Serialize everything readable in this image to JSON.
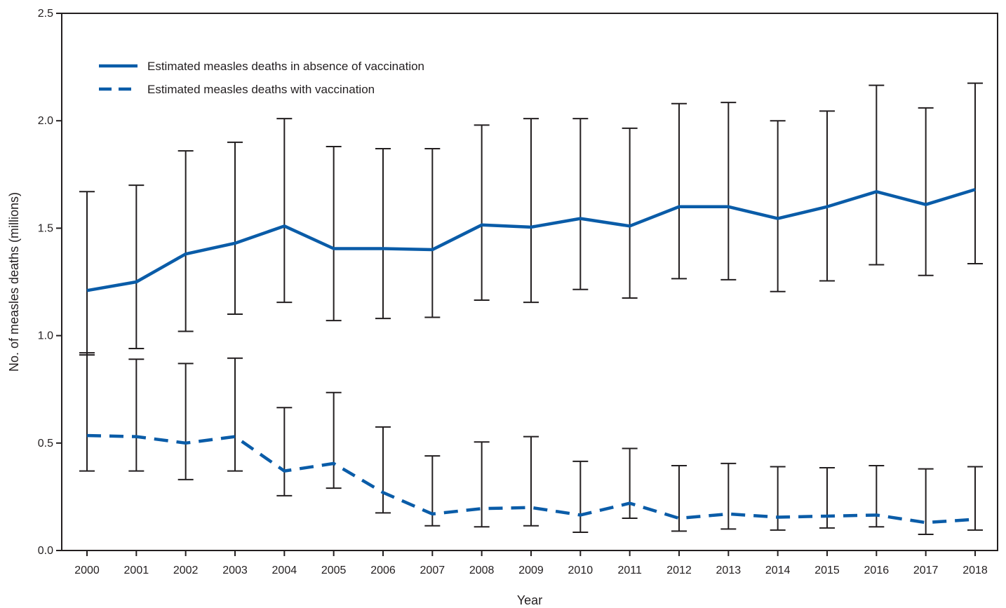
{
  "chart_data": {
    "type": "line",
    "title": "",
    "xlabel": "Year",
    "ylabel": "No. of measles deaths (millions)",
    "x": [
      "2000",
      "2001",
      "2002",
      "2003",
      "2004",
      "2005",
      "2006",
      "2007",
      "2008",
      "2009",
      "2010",
      "2011",
      "2012",
      "2013",
      "2014",
      "2015",
      "2016",
      "2017",
      "2018"
    ],
    "ylim": [
      0,
      2.5
    ],
    "yticks": [
      "0.0",
      "0.5",
      "1.0",
      "1.5",
      "2.0",
      "2.5"
    ],
    "grid": false,
    "legend_position": "top-left",
    "series": [
      {
        "name": "Estimated measles deaths in absence of vaccination",
        "style": "solid",
        "color": "#0a5ca8",
        "values": [
          1.21,
          1.25,
          1.38,
          1.43,
          1.51,
          1.405,
          1.405,
          1.4,
          1.515,
          1.505,
          1.545,
          1.51,
          1.6,
          1.6,
          1.545,
          1.6,
          1.67,
          1.61,
          1.68
        ],
        "lower": [
          0.91,
          0.94,
          1.02,
          1.1,
          1.155,
          1.07,
          1.08,
          1.085,
          1.165,
          1.155,
          1.215,
          1.175,
          1.265,
          1.26,
          1.205,
          1.255,
          1.33,
          1.28,
          1.335
        ],
        "upper": [
          1.67,
          1.7,
          1.86,
          1.9,
          2.01,
          1.88,
          1.87,
          1.87,
          1.98,
          2.01,
          2.01,
          1.965,
          2.08,
          2.085,
          2.0,
          2.045,
          2.165,
          2.06,
          2.175
        ]
      },
      {
        "name": "Estimated measles deaths with vaccination",
        "style": "dashed",
        "color": "#0a5ca8",
        "values": [
          0.535,
          0.53,
          0.5,
          0.53,
          0.37,
          0.405,
          0.27,
          0.17,
          0.195,
          0.2,
          0.165,
          0.22,
          0.15,
          0.17,
          0.155,
          0.16,
          0.165,
          0.13,
          0.145
        ],
        "lower": [
          0.37,
          0.37,
          0.33,
          0.37,
          0.255,
          0.29,
          0.175,
          0.115,
          0.11,
          0.115,
          0.085,
          0.15,
          0.09,
          0.1,
          0.095,
          0.105,
          0.11,
          0.075,
          0.095
        ],
        "upper": [
          0.92,
          0.89,
          0.87,
          0.895,
          0.665,
          0.735,
          0.575,
          0.44,
          0.505,
          0.53,
          0.415,
          0.475,
          0.395,
          0.405,
          0.39,
          0.385,
          0.395,
          0.38,
          0.39
        ]
      }
    ]
  }
}
